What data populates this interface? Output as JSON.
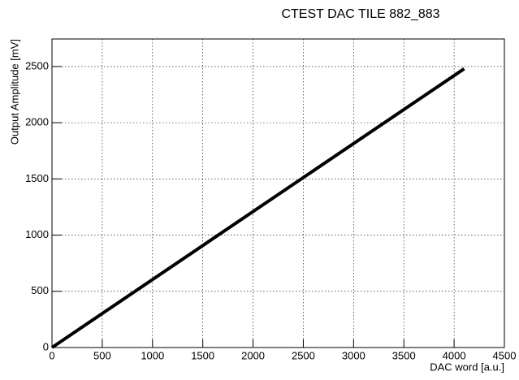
{
  "chart_data": {
    "type": "line",
    "title": "CTEST DAC TILE 882_883",
    "x_label": "DAC word [a.u.]",
    "y_label": "Output Amplitude [mV]",
    "x": [
      0,
      4100
    ],
    "series": [
      {
        "color": "#000000",
        "values": [
          0,
          2480
        ]
      }
    ],
    "xlim": [
      0,
      4500
    ],
    "xticks": [
      0,
      500,
      1000,
      1500,
      2000,
      2500,
      3000,
      3500,
      4000,
      4500
    ],
    "ylim": [
      0,
      2745
    ],
    "yticks": [
      0,
      500,
      1000,
      1500,
      2000,
      2500
    ],
    "grid": true
  }
}
